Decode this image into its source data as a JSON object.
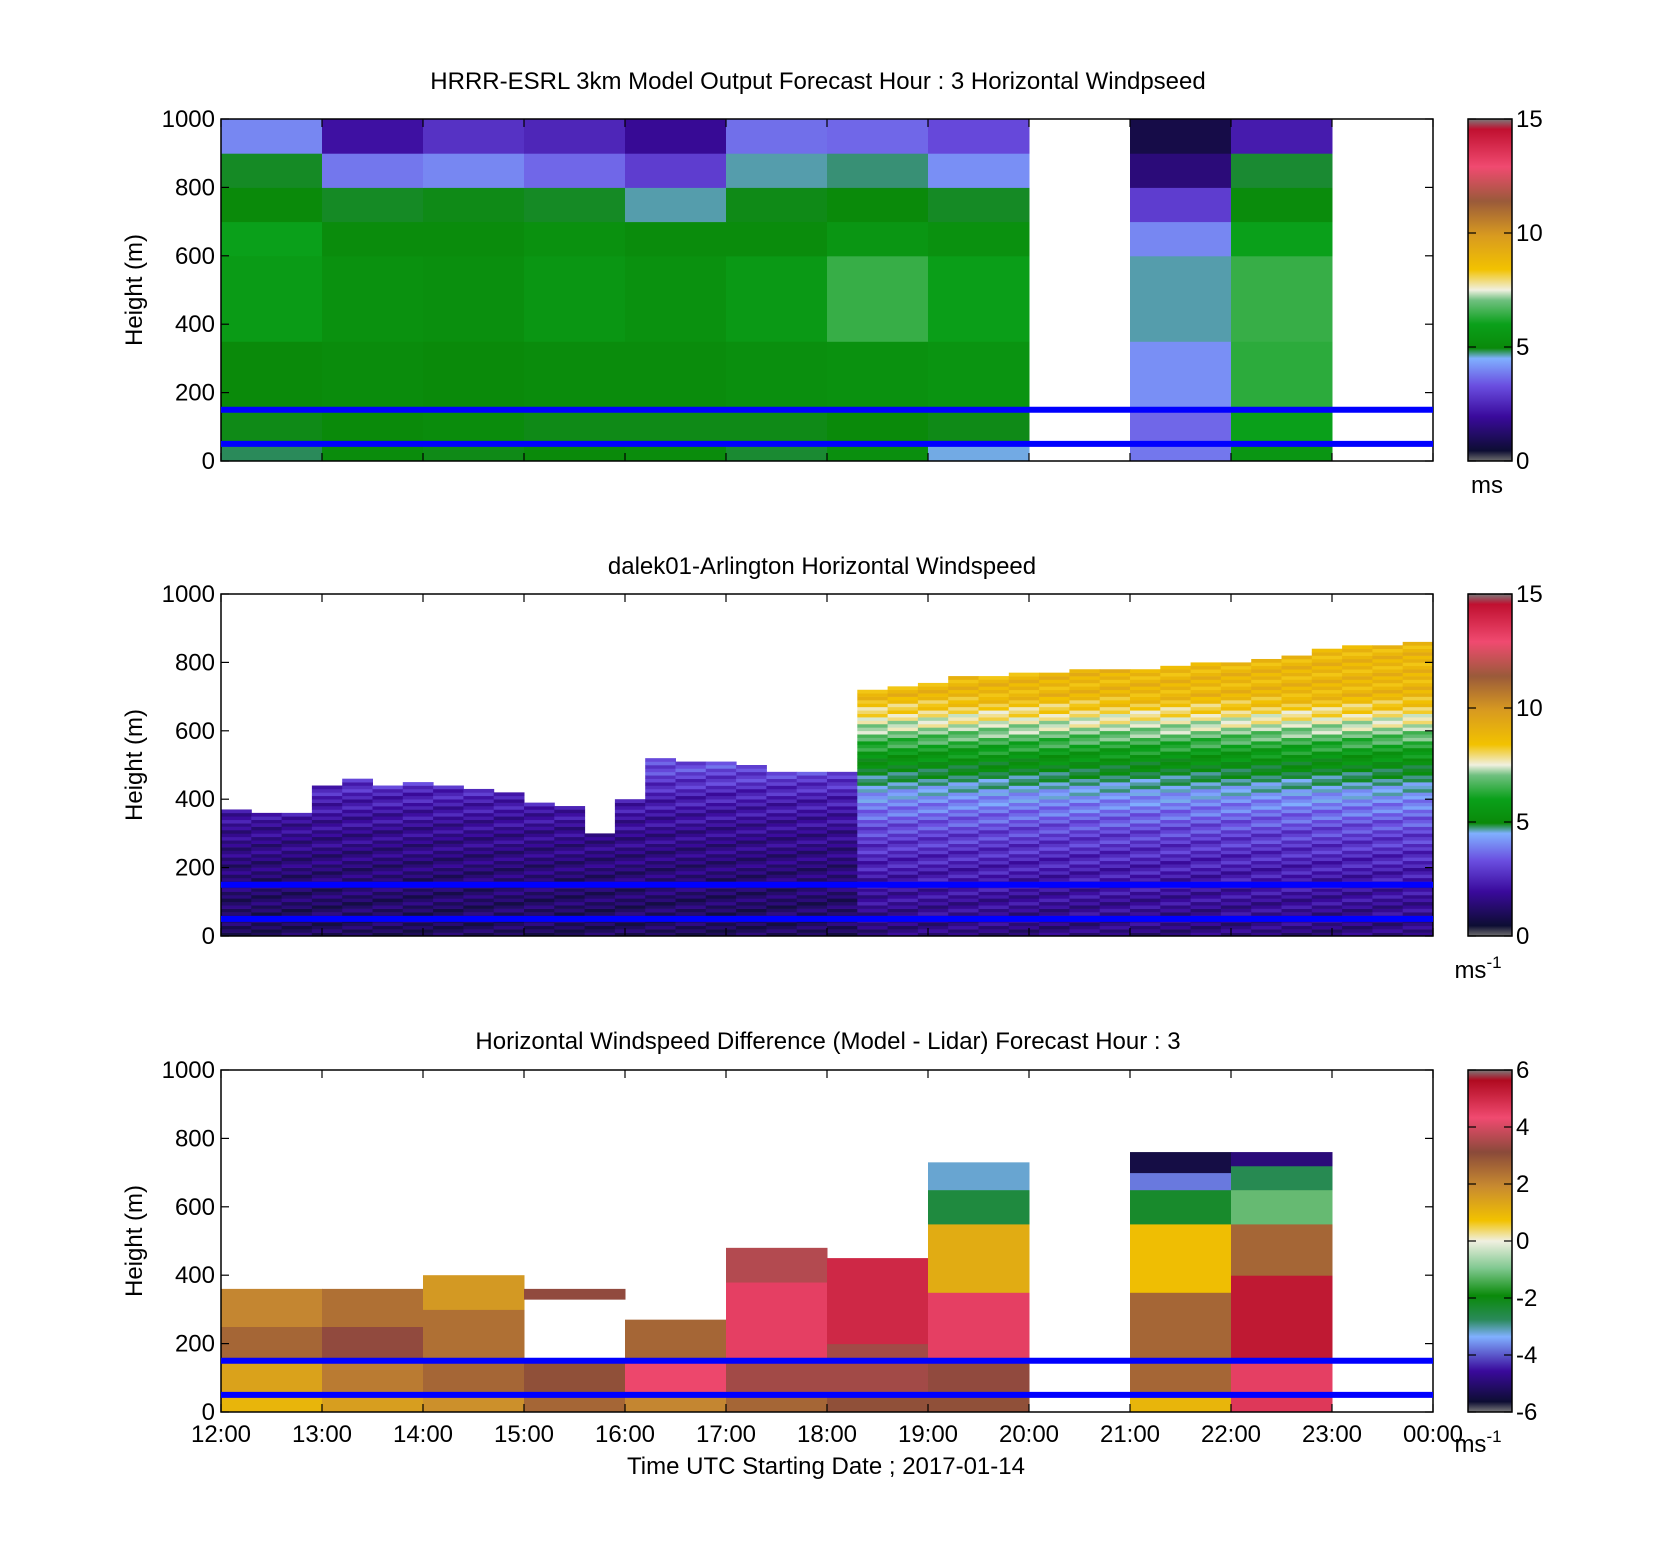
{
  "figure": {
    "xlabel": "Time UTC  Starting Date ; 2017-01-14",
    "x_tick_labels": [
      "12:00",
      "13:00",
      "14:00",
      "15:00",
      "16:00",
      "17:00",
      "18:00",
      "19:00",
      "20:00",
      "21:00",
      "22:00",
      "23:00",
      "00:00"
    ],
    "blue_lines_height_m": [
      150,
      50
    ],
    "blue_line_color": "#0000ff"
  },
  "chart_data": [
    {
      "type": "heatmap",
      "title": "HRRR-ESRL 3km Model Output   Forecast Hour : 3 Horizontal Windpseed",
      "ylabel": "Height (m)",
      "ylim": [
        0,
        1000
      ],
      "y_ticks": [
        "0",
        "200",
        "400",
        "600",
        "800",
        "1000"
      ],
      "colorbar": {
        "ticks": [
          "0",
          "5",
          "10",
          "15"
        ],
        "range": [
          0,
          15
        ],
        "units": "ms"
      },
      "x": [
        "12:00",
        "13:00",
        "14:00",
        "15:00",
        "16:00",
        "17:00",
        "18:00",
        "19:00",
        "20:00",
        "21:00",
        "22:00",
        "23:00"
      ],
      "y_bands": [
        [
          0,
          50
        ],
        [
          50,
          150
        ],
        [
          150,
          350
        ],
        [
          350,
          600
        ],
        [
          600,
          700
        ],
        [
          700,
          800
        ],
        [
          800,
          900
        ],
        [
          900,
          1000
        ]
      ],
      "values": [
        [
          4.5,
          5.2,
          5.0,
          5.1,
          5.2,
          4.8,
          5.3,
          4.0,
          null,
          3.2,
          5.6,
          null
        ],
        [
          5.0,
          5.1,
          5.2,
          5.0,
          5.0,
          5.0,
          5.1,
          5.0,
          null,
          3.0,
          6.0,
          null
        ],
        [
          5.1,
          5.2,
          5.1,
          5.2,
          5.2,
          5.3,
          5.4,
          5.5,
          null,
          3.5,
          6.3,
          null
        ],
        [
          5.8,
          5.4,
          5.3,
          5.6,
          5.4,
          5.7,
          6.4,
          5.9,
          null,
          4.2,
          6.4,
          null
        ],
        [
          6.0,
          5.2,
          5.2,
          5.4,
          5.2,
          5.2,
          5.6,
          5.4,
          null,
          3.4,
          6.0,
          null
        ],
        [
          5.1,
          4.9,
          5.0,
          4.9,
          4.2,
          5.0,
          5.1,
          4.9,
          null,
          2.4,
          5.2,
          null
        ],
        [
          4.9,
          3.2,
          3.4,
          3.0,
          2.4,
          4.2,
          4.4,
          3.5,
          null,
          1.0,
          4.8,
          null
        ],
        [
          3.4,
          1.6,
          2.2,
          2.0,
          1.4,
          3.1,
          3.0,
          2.6,
          null,
          0.3,
          1.8,
          null
        ]
      ]
    },
    {
      "type": "heatmap",
      "title": "dalek01-Arlington  Horizontal Windspeed",
      "ylabel": "Height (m)",
      "ylim": [
        0,
        1000
      ],
      "y_ticks": [
        "0",
        "200",
        "400",
        "600",
        "800",
        "1000"
      ],
      "colorbar": {
        "ticks": [
          "0",
          "5",
          "10",
          "15"
        ],
        "range": [
          0,
          15
        ],
        "units": "ms",
        "units_exp": "-1"
      },
      "column_tops_m": [
        370,
        360,
        360,
        440,
        460,
        440,
        450,
        440,
        430,
        420,
        390,
        380,
        300,
        400,
        520,
        510,
        510,
        500,
        480,
        480,
        480,
        720,
        730,
        740,
        760,
        760,
        770,
        770,
        780,
        780,
        780,
        790,
        800,
        800,
        810,
        820,
        840,
        850,
        850,
        860
      ],
      "values_profile_m": [
        0,
        100,
        200,
        300,
        400,
        500,
        600,
        700
      ],
      "values_mean_speed": [
        1.0,
        1.4,
        1.8,
        2.4,
        3.4,
        5.0,
        6.8,
        8.4
      ]
    },
    {
      "type": "heatmap",
      "title": "Horizontal Windspeed Difference (Model - Lidar) Forecast Hour : 3",
      "ylabel": "Height (m)",
      "ylim": [
        0,
        1000
      ],
      "y_ticks": [
        "0",
        "200",
        "400",
        "600",
        "800",
        "1000"
      ],
      "colorbar": {
        "ticks": [
          "-6",
          "-4",
          "-2",
          "0",
          "2",
          "4",
          "6"
        ],
        "range": [
          -6,
          6
        ],
        "units": "ms",
        "units_exp": "-1"
      },
      "x": [
        "12:00",
        "13:00",
        "14:00",
        "15:00",
        "16:00",
        "17:00",
        "18:00",
        "19:00",
        "20:00",
        "21:00",
        "22:00",
        "23:00"
      ],
      "column_top_m": [
        360,
        360,
        400,
        360,
        270,
        480,
        450,
        730,
        null,
        760,
        760,
        null
      ],
      "column_profile": [
        [
          [
            0,
            50,
            1.0
          ],
          [
            50,
            150,
            1.4
          ],
          [
            150,
            250,
            2.6
          ],
          [
            250,
            360,
            2.0
          ]
        ],
        [
          [
            0,
            50,
            1.5
          ],
          [
            50,
            150,
            2.2
          ],
          [
            150,
            250,
            3.2
          ],
          [
            250,
            360,
            2.4
          ]
        ],
        [
          [
            0,
            50,
            1.8
          ],
          [
            50,
            150,
            2.6
          ],
          [
            150,
            300,
            2.4
          ],
          [
            300,
            400,
            1.6
          ]
        ],
        [
          [
            0,
            50,
            2.6
          ],
          [
            50,
            150,
            3.0
          ],
          [
            150,
            330,
            null
          ],
          [
            330,
            360,
            3.2
          ]
        ],
        [
          [
            0,
            50,
            2.0
          ],
          [
            50,
            150,
            4.4
          ],
          [
            150,
            270,
            2.6
          ]
        ],
        [
          [
            0,
            50,
            2.6
          ],
          [
            50,
            150,
            3.4
          ],
          [
            150,
            380,
            4.6
          ],
          [
            380,
            480,
            3.6
          ]
        ],
        [
          [
            0,
            50,
            3.0
          ],
          [
            50,
            200,
            3.4
          ],
          [
            200,
            450,
            5.2
          ]
        ],
        [
          [
            0,
            50,
            3.0
          ],
          [
            50,
            150,
            3.2
          ],
          [
            150,
            350,
            4.6
          ],
          [
            350,
            550,
            1.2
          ],
          [
            550,
            650,
            -2.6
          ],
          [
            650,
            730,
            -3.4
          ]
        ],
        null,
        [
          [
            0,
            50,
            1.0
          ],
          [
            50,
            350,
            2.6
          ],
          [
            350,
            550,
            0.8
          ],
          [
            550,
            650,
            -2.4
          ],
          [
            650,
            700,
            -4.0
          ],
          [
            700,
            760,
            -5.8
          ]
        ],
        [
          [
            0,
            50,
            4.8
          ],
          [
            50,
            150,
            4.6
          ],
          [
            150,
            400,
            5.6
          ],
          [
            400,
            550,
            2.6
          ],
          [
            550,
            650,
            -1.2
          ],
          [
            650,
            720,
            -2.8
          ],
          [
            720,
            760,
            -5.2
          ]
        ],
        null
      ]
    }
  ]
}
